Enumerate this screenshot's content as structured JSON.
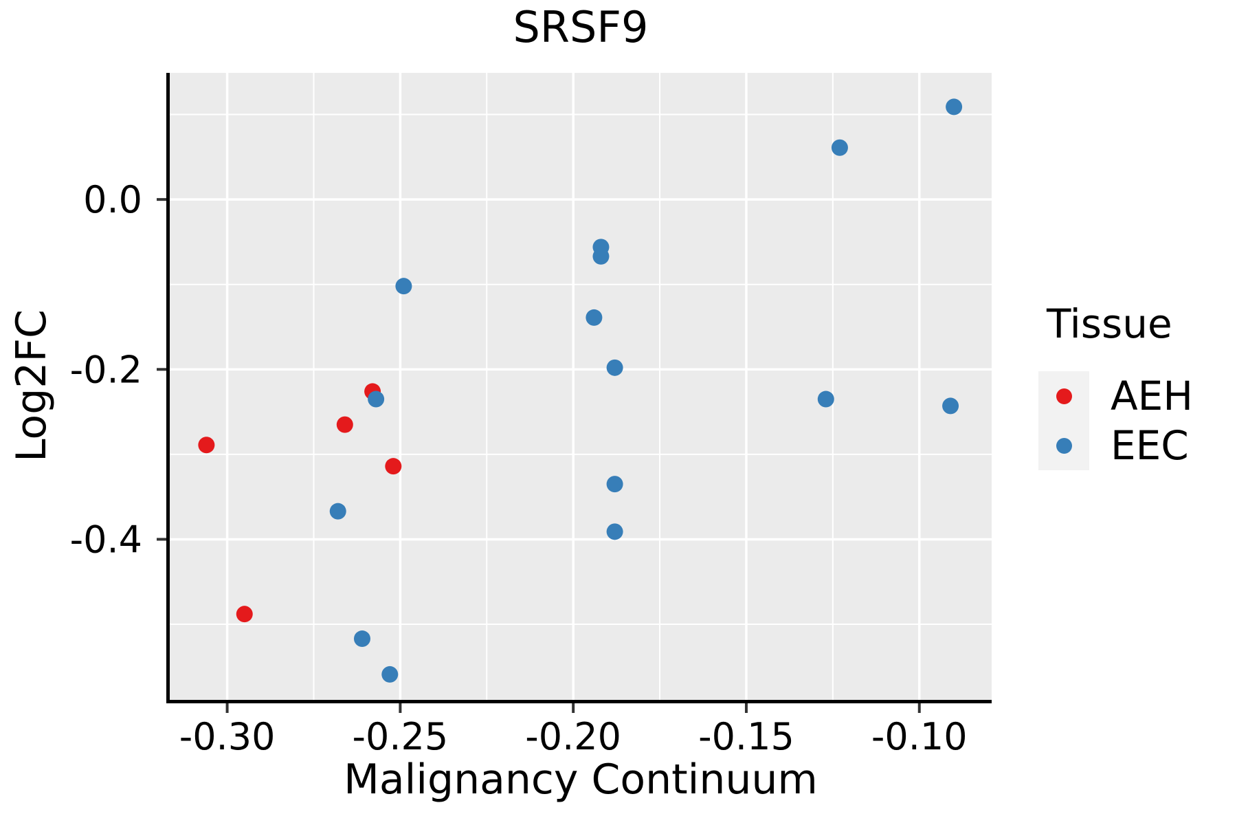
{
  "chart_data": {
    "type": "scatter",
    "title": "SRSF9",
    "xlabel": "Malignancy Continuum",
    "ylabel": "Log2FC",
    "legend_title": "Tissue",
    "legend_position": "right",
    "panel_background": "#EBEBEB",
    "gridline_color": "#FFFFFF",
    "axis_color": "#000000",
    "tick_color": "#333333",
    "xlim": [
      -0.3166,
      -0.0791
    ],
    "ylim": [
      -0.589,
      0.149
    ],
    "x_major_ticks": [
      {
        "value": -0.3,
        "label": "-0.30"
      },
      {
        "value": -0.25,
        "label": "-0.25"
      },
      {
        "value": -0.2,
        "label": "-0.20"
      },
      {
        "value": -0.15,
        "label": "-0.15"
      },
      {
        "value": -0.1,
        "label": "-0.10"
      }
    ],
    "y_major_ticks": [
      {
        "value": 0.0,
        "label": "0.0"
      },
      {
        "value": -0.2,
        "label": "-0.2"
      },
      {
        "value": -0.4,
        "label": "-0.4"
      }
    ],
    "x_minor_gridlines": [
      -0.275,
      -0.225,
      -0.175,
      -0.125
    ],
    "y_minor_gridlines": [
      0.1,
      -0.1,
      -0.3,
      -0.5
    ],
    "series": [
      {
        "name": "AEH",
        "color": "#E41A1C",
        "points": [
          [
            -0.306,
            -0.289
          ],
          [
            -0.295,
            -0.488
          ],
          [
            -0.266,
            -0.265
          ],
          [
            -0.258,
            -0.226
          ],
          [
            -0.252,
            -0.314
          ]
        ]
      },
      {
        "name": "EEC",
        "color": "#377EB8",
        "points": [
          [
            -0.268,
            -0.367
          ],
          [
            -0.261,
            -0.517
          ],
          [
            -0.257,
            -0.235
          ],
          [
            -0.253,
            -0.559
          ],
          [
            -0.249,
            -0.102
          ],
          [
            -0.194,
            -0.139
          ],
          [
            -0.192,
            -0.056
          ],
          [
            -0.192,
            -0.067
          ],
          [
            -0.188,
            -0.198
          ],
          [
            -0.188,
            -0.335
          ],
          [
            -0.188,
            -0.391
          ],
          [
            -0.127,
            -0.235
          ],
          [
            -0.123,
            0.061
          ],
          [
            -0.091,
            -0.243
          ],
          [
            -0.09,
            0.109
          ]
        ]
      }
    ]
  }
}
